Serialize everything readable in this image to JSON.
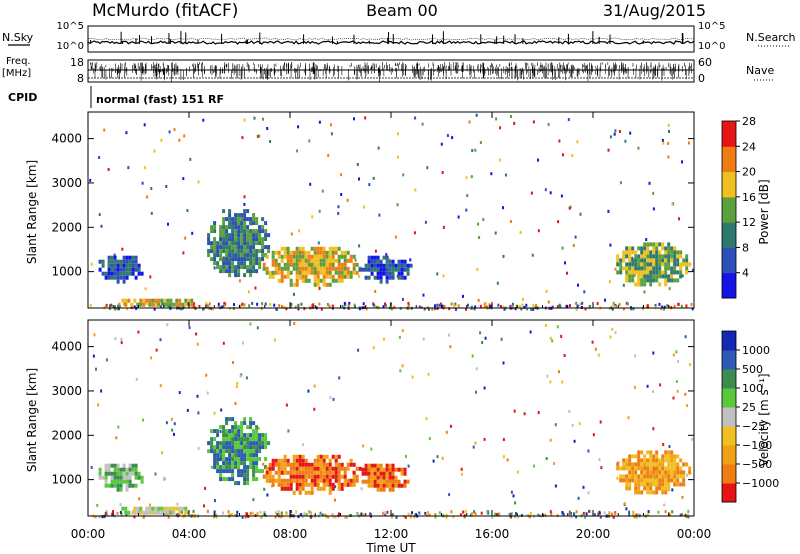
{
  "header": {
    "station": "McMurdo (fitACF)",
    "beam": "Beam 00",
    "date": "31/Aug/2015"
  },
  "top_panels": {
    "nsky_label": "N.Sky",
    "nsky_ticks": [
      "10^5",
      "10^0"
    ],
    "nsearch_label": "N.Search",
    "nsearch_ticks": [
      "10^5",
      "10^0"
    ],
    "freq_label_line1": "Freq.",
    "freq_label_line2": "[MHz]",
    "freq_ticks": [
      "18",
      "8"
    ],
    "nave_label": "Nave",
    "nave_ticks": [
      "60",
      "0"
    ],
    "cpid_label": "CPID",
    "cpid_text": "normal (fast) 151 RF"
  },
  "chart_data": [
    {
      "type": "heatmap",
      "name": "power",
      "ylabel": "Slant Range [km]",
      "yticks": [
        1000,
        2000,
        3000,
        4000
      ],
      "ylim": [
        180,
        4600
      ],
      "xlim": [
        0,
        24
      ],
      "colorbar_label": "Power [dB]",
      "colorbar_ticks": [
        "4",
        "8",
        "12",
        "16",
        "20",
        "24",
        "28"
      ],
      "colorbar_colors": [
        "#1414e6",
        "#2d4fb8",
        "#2f7a6e",
        "#5aa03c",
        "#f0c020",
        "#f07d14",
        "#e61414"
      ],
      "scatter_regions": [
        {
          "t0": 0.3,
          "t1": 2.2,
          "r0": 800,
          "r1": 1450,
          "level": 1
        },
        {
          "t0": 1.2,
          "t1": 4.2,
          "r0": 220,
          "r1": 480,
          "level": 4
        },
        {
          "t0": 4.6,
          "t1": 7.2,
          "r0": 900,
          "r1": 2500,
          "level": 2
        },
        {
          "t0": 6.8,
          "t1": 10.8,
          "r0": 700,
          "r1": 1650,
          "level": 4
        },
        {
          "t0": 10.6,
          "t1": 12.8,
          "r0": 800,
          "r1": 1450,
          "level": 1
        },
        {
          "t0": 20.8,
          "t1": 23.8,
          "r0": 700,
          "r1": 1750,
          "level": 3
        }
      ]
    },
    {
      "type": "heatmap",
      "name": "velocity",
      "ylabel": "Slant Range [km]",
      "xlabel": "Time UT",
      "yticks": [
        1000,
        2000,
        3000,
        4000
      ],
      "ylim": [
        180,
        4600
      ],
      "xlim": [
        0,
        24
      ],
      "xticks": [
        "00:00",
        "04:00",
        "08:00",
        "12:00",
        "16:00",
        "20:00",
        "00:00"
      ],
      "colorbar_label": "Velocity [m s⁻¹]",
      "colorbar_ticks": [
        "-1000",
        "-500",
        "-100",
        "-25",
        "25",
        "100",
        "500",
        "1000"
      ],
      "colorbar_colors": [
        "#e61414",
        "#f07d14",
        "#f0a014",
        "#f0c020",
        "#c0c0c0",
        "#5ac83c",
        "#3c8c50",
        "#2d5ab4",
        "#1428b4"
      ],
      "scatter_regions": [
        {
          "t0": 0.3,
          "t1": 2.2,
          "r0": 800,
          "r1": 1450,
          "level": 5
        },
        {
          "t0": 1.2,
          "t1": 4.2,
          "r0": 220,
          "r1": 480,
          "level": 4
        },
        {
          "t0": 4.6,
          "t1": 7.2,
          "r0": 900,
          "r1": 2500,
          "level": 6
        },
        {
          "t0": 6.8,
          "t1": 10.8,
          "r0": 700,
          "r1": 1650,
          "level": 1
        },
        {
          "t0": 10.6,
          "t1": 12.8,
          "r0": 800,
          "r1": 1450,
          "level": 1
        },
        {
          "t0": 20.8,
          "t1": 23.8,
          "r0": 700,
          "r1": 1750,
          "level": 2
        }
      ]
    }
  ]
}
